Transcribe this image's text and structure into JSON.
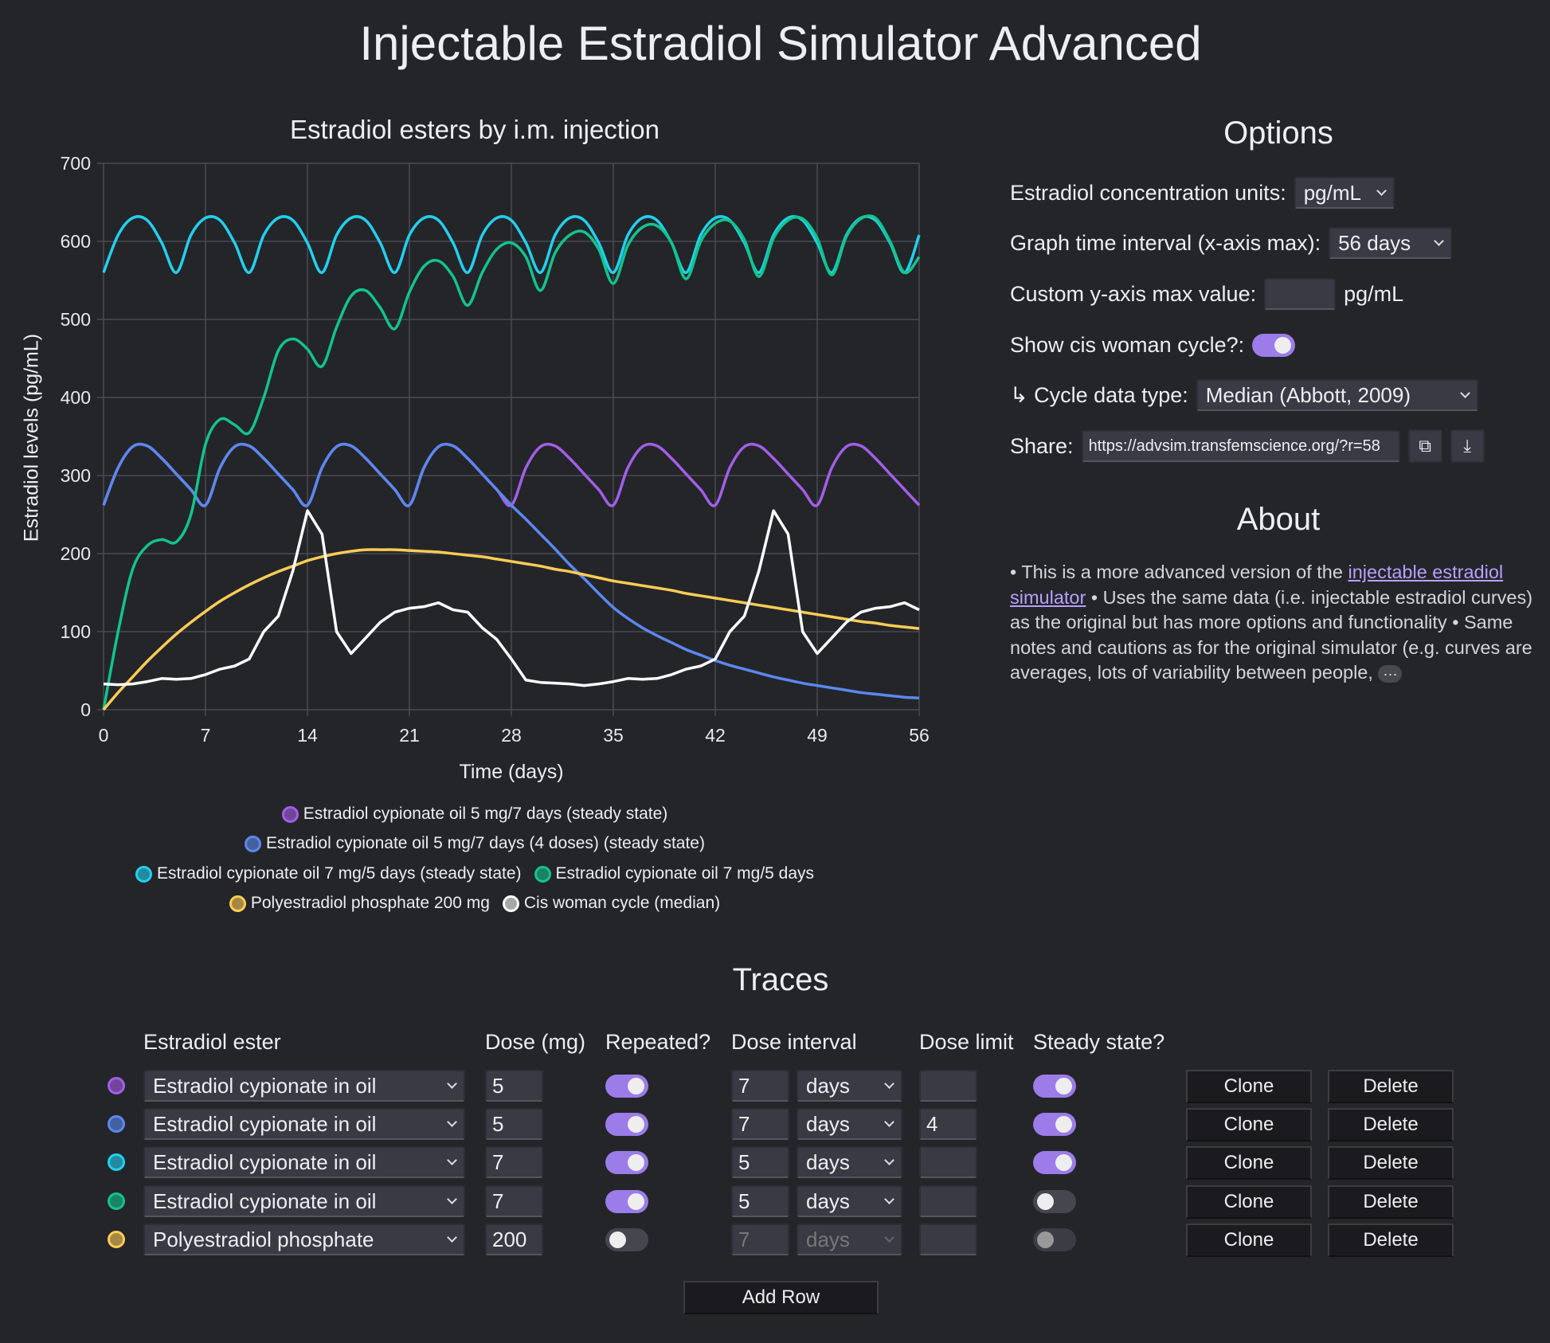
{
  "title": "Injectable Estradiol Simulator Advanced",
  "colors": {
    "background": "#242529",
    "accent": "#9b7ce8",
    "link": "#b8a0ff"
  },
  "chart_data": {
    "type": "line",
    "title": "Estradiol esters by i.m. injection",
    "xlabel": "Time (days)",
    "ylabel": "Estradiol levels (pg/mL)",
    "xlim": [
      0,
      56
    ],
    "ylim": [
      0,
      700
    ],
    "xticks": [
      "0",
      "7",
      "14",
      "21",
      "28",
      "35",
      "42",
      "49",
      "56"
    ],
    "yticks": [
      "0",
      "100",
      "200",
      "300",
      "400",
      "500",
      "600",
      "700"
    ],
    "grid": true,
    "legend_position": "bottom",
    "x": [
      0,
      1,
      2,
      3,
      4,
      5,
      6,
      7,
      8,
      9,
      10,
      11,
      12,
      13,
      14,
      15,
      16,
      17,
      18,
      19,
      20,
      21,
      22,
      23,
      24,
      25,
      26,
      27,
      28,
      29,
      30,
      31,
      32,
      33,
      34,
      35,
      36,
      37,
      38,
      39,
      40,
      41,
      42,
      43,
      44,
      45,
      46,
      47,
      48,
      49,
      50,
      51,
      52,
      53,
      54,
      55,
      56
    ],
    "series": [
      {
        "name": "Estradiol cypionate oil 5 mg/7 days (steady state)",
        "color": "#a35ee8",
        "smooth": true,
        "values": [
          262,
          310,
          337,
          338,
          322,
          302,
          282,
          262,
          310,
          337,
          338,
          322,
          302,
          282,
          262,
          310,
          337,
          338,
          322,
          302,
          282,
          262,
          310,
          337,
          338,
          322,
          302,
          282,
          262,
          310,
          337,
          338,
          322,
          302,
          282,
          262,
          310,
          337,
          338,
          322,
          302,
          282,
          262,
          310,
          337,
          338,
          322,
          302,
          282,
          262,
          310,
          337,
          338,
          322,
          302,
          282,
          262
        ]
      },
      {
        "name": "Estradiol cypionate oil 5 mg/7 days (4 doses) (steady state)",
        "color": "#5b88ee",
        "smooth": true,
        "values": [
          262,
          310,
          337,
          338,
          322,
          302,
          282,
          262,
          310,
          337,
          338,
          322,
          302,
          282,
          262,
          310,
          337,
          338,
          322,
          302,
          282,
          262,
          310,
          337,
          338,
          322,
          302,
          282,
          262,
          244,
          225,
          206,
          186,
          168,
          149,
          131,
          117,
          105,
          95,
          86,
          77,
          70,
          63,
          57,
          52,
          47,
          42,
          38,
          34,
          31,
          28,
          25,
          22,
          20,
          18,
          16,
          15
        ]
      },
      {
        "name": "Estradiol cypionate oil 7 mg/5 days (steady state)",
        "color": "#22d0ef",
        "smooth": true,
        "values": [
          560,
          608,
          630,
          627,
          598,
          560,
          608,
          630,
          627,
          598,
          560,
          608,
          630,
          627,
          598,
          560,
          608,
          630,
          627,
          598,
          560,
          608,
          630,
          627,
          598,
          560,
          608,
          630,
          627,
          598,
          560,
          608,
          630,
          627,
          598,
          560,
          608,
          630,
          627,
          598,
          560,
          608,
          630,
          627,
          598,
          560,
          608,
          630,
          627,
          598,
          560,
          608,
          630,
          627,
          598,
          560,
          608
        ]
      },
      {
        "name": "Estradiol cypionate oil 7 mg/5 days",
        "color": "#12c48c",
        "smooth": true,
        "values": [
          0,
          100,
          180,
          210,
          218,
          215,
          250,
          340,
          372,
          365,
          355,
          400,
          460,
          475,
          462,
          440,
          490,
          530,
          537,
          515,
          488,
          535,
          568,
          575,
          555,
          518,
          560,
          590,
          598,
          580,
          537,
          585,
          608,
          612,
          590,
          546,
          595,
          618,
          620,
          598,
          552,
          600,
          623,
          626,
          602,
          555,
          604,
          627,
          629,
          604,
          557,
          606,
          629,
          630,
          600,
          560,
          580
        ]
      },
      {
        "name": "Polyestradiol phosphate 200 mg",
        "color": "#fbcd55",
        "smooth": true,
        "values": [
          0,
          22,
          42,
          62,
          80,
          97,
          112,
          126,
          139,
          150,
          160,
          169,
          177,
          184,
          191,
          196,
          200,
          203,
          205,
          205,
          205,
          204,
          203,
          202,
          200,
          198,
          196,
          193,
          190,
          187,
          184,
          180,
          177,
          173,
          169,
          165,
          162,
          159,
          156,
          153,
          149,
          146,
          143,
          140,
          137,
          134,
          131,
          128,
          125,
          122,
          119,
          116,
          113,
          111,
          108,
          106,
          104
        ]
      },
      {
        "name": "Cis woman cycle (median)",
        "color": "#ffffff",
        "smooth": false,
        "values": [
          33,
          32,
          33,
          36,
          40,
          39,
          40,
          45,
          52,
          56,
          65,
          100,
          120,
          178,
          255,
          225,
          100,
          72,
          92,
          112,
          125,
          130,
          132,
          137,
          128,
          125,
          105,
          90,
          65,
          38,
          35,
          34,
          33,
          31,
          33,
          36,
          40,
          39,
          40,
          45,
          52,
          56,
          65,
          100,
          120,
          178,
          255,
          225,
          100,
          72,
          92,
          112,
          125,
          130,
          132,
          137,
          128
        ]
      }
    ]
  },
  "options": {
    "heading": "Options",
    "units_label": "Estradiol concentration units:",
    "units_value": "pg/mL",
    "interval_label": "Graph time interval (x-axis max):",
    "interval_value": "56 days",
    "ymax_label": "Custom y-axis max value:",
    "ymax_value": "",
    "ymax_unit": "pg/mL",
    "cycle_label": "Show cis woman cycle?:",
    "cycle_on": true,
    "cycle_type_label": "↳ Cycle data type:",
    "cycle_type_value": "Median (Abbott, 2009)",
    "share_label": "Share:",
    "share_url": "https://advsim.transfemscience.org/?r=58",
    "copy_icon": "copy-icon",
    "download_icon": "download-icon"
  },
  "about": {
    "heading": "About",
    "t1": "• This is a more advanced version of the ",
    "link": "injectable estradiol simulator",
    "t2": " • Uses the same data (i.e. injectable estradiol curves) as the original but has more options and functionality • Same notes and cautions as for the original simulator (e.g. curves are averages, lots of variability between people, ",
    "more": "···"
  },
  "traces": {
    "heading": "Traces",
    "headers": {
      "ester": "Estradiol ester",
      "dose": "Dose (mg)",
      "repeated": "Repeated?",
      "interval": "Dose interval",
      "limit": "Dose limit",
      "steady": "Steady state?"
    },
    "rows": [
      {
        "color": "#a35ee8",
        "ester": "Estradiol cypionate in oil",
        "dose": "5",
        "repeated": true,
        "interval": "7",
        "unit": "days",
        "limit": "",
        "steady": true,
        "clone": "Clone",
        "delete": "Delete"
      },
      {
        "color": "#5b88ee",
        "ester": "Estradiol cypionate in oil",
        "dose": "5",
        "repeated": true,
        "interval": "7",
        "unit": "days",
        "limit": "4",
        "steady": true,
        "clone": "Clone",
        "delete": "Delete"
      },
      {
        "color": "#22d0ef",
        "ester": "Estradiol cypionate in oil",
        "dose": "7",
        "repeated": true,
        "interval": "5",
        "unit": "days",
        "limit": "",
        "steady": true,
        "clone": "Clone",
        "delete": "Delete"
      },
      {
        "color": "#12c48c",
        "ester": "Estradiol cypionate in oil",
        "dose": "7",
        "repeated": true,
        "interval": "5",
        "unit": "days",
        "limit": "",
        "steady": false,
        "clone": "Clone",
        "delete": "Delete"
      },
      {
        "color": "#fbcd55",
        "ester": "Polyestradiol phosphate",
        "dose": "200",
        "repeated": false,
        "interval": "7",
        "unit": "days",
        "limit": "",
        "steady": false,
        "clone": "Clone",
        "delete": "Delete"
      }
    ],
    "add_row": "Add Row"
  }
}
